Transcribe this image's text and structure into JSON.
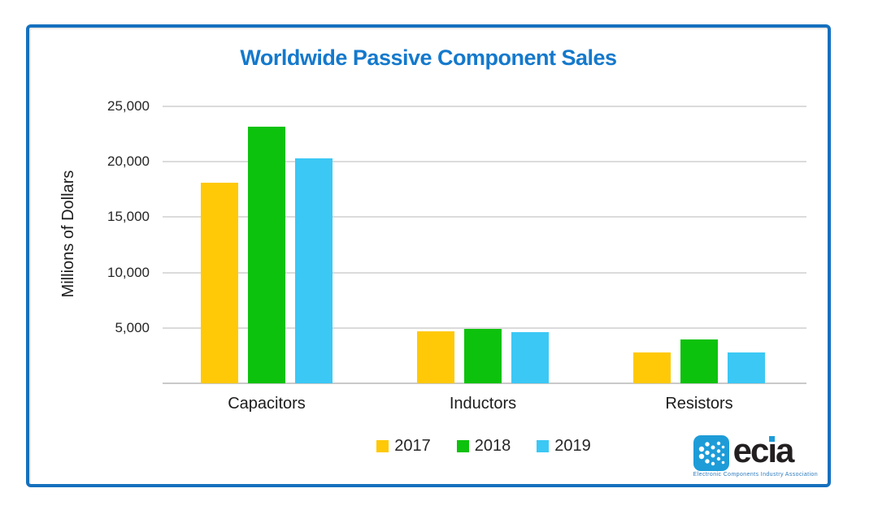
{
  "title": "Worldwide Passive Component Sales",
  "chart_data": {
    "type": "bar",
    "title": "Worldwide Passive Component Sales",
    "categories": [
      "Capacitors",
      "Inductors",
      "Resistors"
    ],
    "series": [
      {
        "name": "2017",
        "color": "#FFC907",
        "values": [
          18100,
          4700,
          2750
        ]
      },
      {
        "name": "2018",
        "color": "#0DC20D",
        "values": [
          23200,
          4900,
          3950
        ]
      },
      {
        "name": "2019",
        "color": "#3BC8F5",
        "values": [
          20300,
          4650,
          2800
        ]
      }
    ],
    "xlabel": "",
    "ylabel": "Millions of Dollars",
    "ylim": [
      0,
      25000
    ],
    "yticks": [
      5000,
      10000,
      15000,
      20000,
      25000
    ],
    "ytick_labels": [
      "5,000",
      "10,000",
      "15,000",
      "20,000",
      "25,000"
    ],
    "grid": true,
    "legend_position": "bottom-center"
  },
  "logo": {
    "text": "ecia",
    "tagline": "Electronic Components Industry Association",
    "icon": "ecia-fan-icon",
    "icon_color": "#1E9CD8",
    "text_color": "#231F20"
  },
  "colors": {
    "frame_border": "#1570BE",
    "title": "#1479CC",
    "gridline": "#DBDBDB",
    "axis_text": "#262626",
    "background": "#FFFFFF"
  }
}
